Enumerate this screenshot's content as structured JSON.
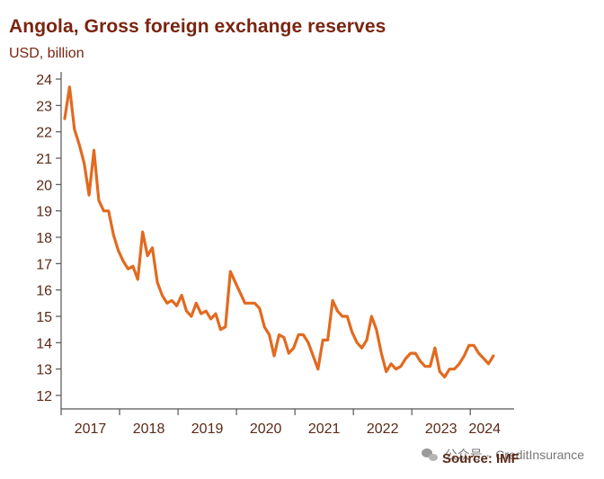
{
  "header": {
    "title": "Angola, Gross foreign exchange reserves",
    "unit": "USD, billion"
  },
  "footer": {
    "watermark_prefix": "公众号 ·",
    "watermark_brand": "CreditInsurance",
    "source": "Source: IMF"
  },
  "colors": {
    "line": "#e26a1f",
    "axis": "#555555",
    "title": "#7a2410"
  },
  "chart_data": {
    "type": "line",
    "title": "Angola, Gross foreign exchange reserves",
    "ylabel": "USD, billion",
    "xlabel": "",
    "ylim": [
      12,
      24
    ],
    "yticks": [
      12,
      13,
      14,
      15,
      16,
      17,
      18,
      19,
      20,
      21,
      22,
      23,
      24
    ],
    "x_tick_labels": [
      "2017",
      "2018",
      "2019",
      "2020",
      "2021",
      "2022",
      "2023",
      "2024"
    ],
    "grid": false,
    "series": [
      {
        "values": [
          22.5,
          23.7,
          22.1,
          21.5,
          20.8,
          19.6,
          21.3,
          19.4,
          19.0,
          19.0,
          18.1,
          17.5,
          17.1,
          16.8,
          16.9,
          16.4,
          18.2,
          17.3,
          17.6,
          16.3,
          15.8,
          15.5,
          15.6,
          15.4,
          15.8,
          15.2,
          15.0,
          15.5,
          15.1,
          15.2,
          14.9,
          15.1,
          14.5,
          14.6,
          16.7,
          16.3,
          15.9,
          15.5,
          15.5,
          15.5,
          15.3,
          14.6,
          14.3,
          13.5,
          14.3,
          14.2,
          13.6,
          13.8,
          14.3,
          14.3,
          14.0,
          13.5,
          13.0,
          14.1,
          14.1,
          15.6,
          15.2,
          15.0,
          15.0,
          14.4,
          14.0,
          13.8,
          14.1,
          15.0,
          14.5,
          13.6,
          12.9,
          13.2,
          13.0,
          13.1,
          13.4,
          13.6,
          13.6,
          13.3,
          13.1,
          13.1,
          13.8,
          12.9,
          12.7,
          13.0,
          13.0,
          13.2,
          13.5,
          13.9,
          13.9,
          13.6,
          13.4,
          13.2,
          13.5
        ]
      }
    ]
  }
}
